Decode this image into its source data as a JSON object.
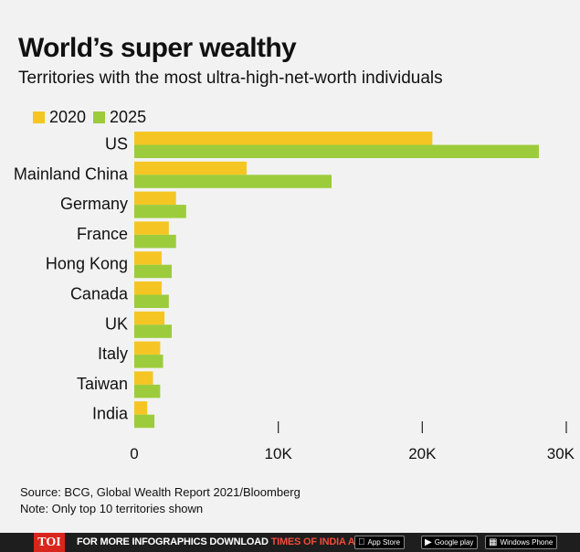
{
  "chart_data": {
    "type": "bar",
    "orientation": "horizontal",
    "title": "World’s super wealthy",
    "subtitle": "Territories with the most ultra-high-net-worth individuals",
    "categories": [
      "US",
      "Mainland China",
      "Germany",
      "France",
      "Hong Kong",
      "Canada",
      "UK",
      "Italy",
      "Taiwan",
      "India"
    ],
    "series": [
      {
        "name": "2020",
        "color": "#f5c623",
        "values": [
          20700,
          7800,
          2900,
          2400,
          1900,
          1900,
          2100,
          1800,
          1300,
          900
        ]
      },
      {
        "name": "2025",
        "color": "#9ccc3c",
        "values": [
          28100,
          13700,
          3600,
          2900,
          2600,
          2400,
          2600,
          2000,
          1800,
          1400
        ]
      }
    ],
    "xlim": [
      0,
      30000
    ],
    "x_ticks": [
      {
        "value": 0,
        "label": "0"
      },
      {
        "value": 10000,
        "label": "10K"
      },
      {
        "value": 20000,
        "label": "20K"
      },
      {
        "value": 30000,
        "label": "30K"
      }
    ],
    "legend_position": "top-left",
    "grid": false
  },
  "source_line": "Source: BCG, Global Wealth Report 2021/Bloomberg",
  "note_line": "Note: Only top 10 territories shown",
  "footer": {
    "logo": "TOI",
    "cta_text": "FOR MORE  INFOGRAPHICS DOWNLOAD ",
    "cta_app": "TIMES OF INDIA APP",
    "badges": [
      {
        "icon": "apple-icon",
        "label": "App Store"
      },
      {
        "icon": "play-icon",
        "label": "Google play"
      },
      {
        "icon": "windows-icon",
        "label": "Windows Phone"
      }
    ]
  }
}
